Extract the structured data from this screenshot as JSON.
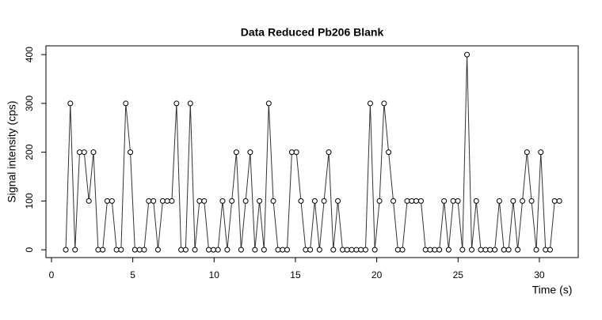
{
  "chart_data": {
    "type": "line",
    "title": "Data Reduced Pb206 Blank",
    "x_label": "Time (s)",
    "y_label": "Signal intensity (cps)",
    "x": [
      0.88,
      1.16,
      1.45,
      1.73,
      2.01,
      2.3,
      2.58,
      2.87,
      3.15,
      3.43,
      3.72,
      4.0,
      4.28,
      4.57,
      4.85,
      5.13,
      5.42,
      5.7,
      5.98,
      6.27,
      6.55,
      6.84,
      7.12,
      7.4,
      7.69,
      7.97,
      8.25,
      8.54,
      8.82,
      9.1,
      9.39,
      9.67,
      9.96,
      10.24,
      10.52,
      10.81,
      11.09,
      11.37,
      11.66,
      11.94,
      12.22,
      12.51,
      12.79,
      13.07,
      13.36,
      13.64,
      13.93,
      14.21,
      14.49,
      14.78,
      15.06,
      15.34,
      15.63,
      15.91,
      16.19,
      16.48,
      16.76,
      17.05,
      17.33,
      17.61,
      17.9,
      18.18,
      18.46,
      18.75,
      19.03,
      19.31,
      19.6,
      19.88,
      20.17,
      20.45,
      20.73,
      21.02,
      21.3,
      21.58,
      21.87,
      22.15,
      22.43,
      22.72,
      23.0,
      23.28,
      23.57,
      23.85,
      24.14,
      24.42,
      24.7,
      24.99,
      25.27,
      25.55,
      25.84,
      26.12,
      26.4,
      26.69,
      26.97,
      27.26,
      27.54,
      27.82,
      28.11,
      28.39,
      28.67,
      28.96,
      29.24,
      29.52,
      29.81,
      30.09,
      30.38,
      30.66,
      30.94,
      31.23
    ],
    "values": [
      0,
      300,
      0,
      200,
      200,
      100,
      200,
      0,
      0,
      100,
      100,
      0,
      0,
      300,
      200,
      0,
      0,
      0,
      100,
      100,
      0,
      100,
      100,
      100,
      300,
      0,
      0,
      300,
      0,
      100,
      100,
      0,
      0,
      0,
      100,
      0,
      100,
      200,
      0,
      100,
      200,
      0,
      100,
      0,
      300,
      100,
      0,
      0,
      0,
      200,
      200,
      100,
      0,
      0,
      100,
      0,
      100,
      200,
      0,
      100,
      0,
      0,
      0,
      0,
      0,
      0,
      300,
      0,
      100,
      300,
      200,
      100,
      0,
      0,
      100,
      100,
      100,
      100,
      0,
      0,
      0,
      0,
      100,
      0,
      100,
      100,
      0,
      400,
      0,
      100,
      0,
      0,
      0,
      0,
      100,
      0,
      0,
      100,
      0,
      100,
      200,
      100,
      0,
      200,
      0,
      0,
      100,
      100
    ],
    "color": "#000000",
    "xlim": [
      -0.34,
      32.39
    ],
    "xticks": [
      0,
      5,
      10,
      15,
      20,
      25,
      30
    ],
    "ylim": [
      -16,
      418
    ],
    "yticks": [
      0,
      100,
      200,
      300,
      400
    ]
  }
}
